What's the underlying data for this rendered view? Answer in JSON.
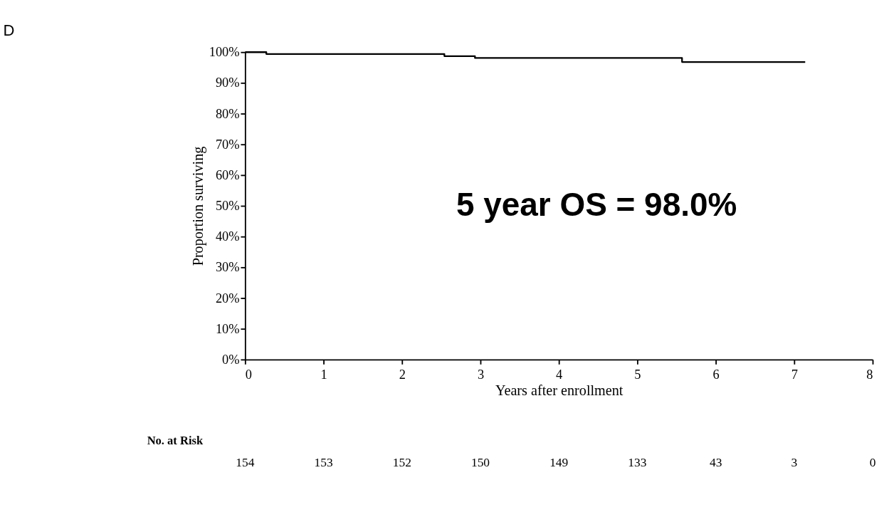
{
  "chart_data": {
    "type": "step",
    "title": "D",
    "xlabel": "Years after enrollment",
    "ylabel": "Proportion surviving",
    "x": [
      0,
      0.27,
      2.54,
      2.93,
      5.57,
      7.14
    ],
    "series": [
      {
        "color": "#000000",
        "values": [
          100,
          99.4,
          98.7,
          98.1,
          96.8,
          96.8
        ]
      }
    ],
    "xlim": [
      0,
      8
    ],
    "xticks": [
      0,
      1,
      2,
      3,
      4,
      5,
      6,
      7,
      8
    ],
    "ylim": [
      0,
      100
    ],
    "yticks": [
      {
        "value": 0,
        "label": "0%"
      },
      {
        "value": 10,
        "label": "10%"
      },
      {
        "value": 20,
        "label": "20%"
      },
      {
        "value": 30,
        "label": "30%"
      },
      {
        "value": 40,
        "label": "40%"
      },
      {
        "value": 50,
        "label": "50%"
      },
      {
        "value": 60,
        "label": "60%"
      },
      {
        "value": 70,
        "label": "70%"
      },
      {
        "value": 80,
        "label": "80%"
      },
      {
        "value": 90,
        "label": "90%"
      },
      {
        "value": 100,
        "label": "100%"
      }
    ],
    "annotations": [
      "5 year OS = 98.0%",
      "No. at Risk",
      "154",
      "153",
      "152",
      "150",
      "149",
      "133",
      "43",
      "3",
      "0"
    ],
    "grid": false
  }
}
